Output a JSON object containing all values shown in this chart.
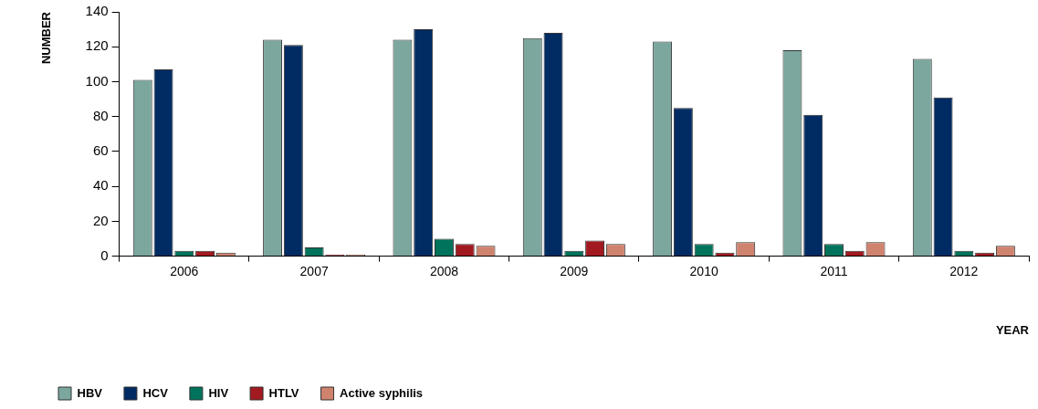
{
  "chart_data": {
    "type": "bar",
    "xlabel": "YEAR",
    "ylabel": "NUMBER",
    "categories": [
      "2006",
      "2007",
      "2008",
      "2009",
      "2010",
      "2011",
      "2012"
    ],
    "series": [
      {
        "name": "HBV",
        "color": "#7ba79e",
        "values": [
          101,
          124,
          124,
          125,
          123,
          118,
          113
        ]
      },
      {
        "name": "HCV",
        "color": "#002b63",
        "values": [
          107,
          121,
          130,
          128,
          85,
          81,
          91
        ]
      },
      {
        "name": "HIV",
        "color": "#00735c",
        "values": [
          3,
          5,
          10,
          3,
          7,
          7,
          3
        ]
      },
      {
        "name": "HTLV",
        "color": "#a2191f",
        "values": [
          3,
          1,
          7,
          9,
          2,
          3,
          2
        ]
      },
      {
        "name": "Active syphilis",
        "color": "#cf836f",
        "values": [
          2,
          1,
          6,
          7,
          8,
          8,
          6
        ]
      }
    ],
    "ylim": [
      0,
      140
    ],
    "yticks": [
      0,
      20,
      40,
      60,
      80,
      100,
      120,
      140
    ],
    "grid": false,
    "legend": "bottom left"
  }
}
